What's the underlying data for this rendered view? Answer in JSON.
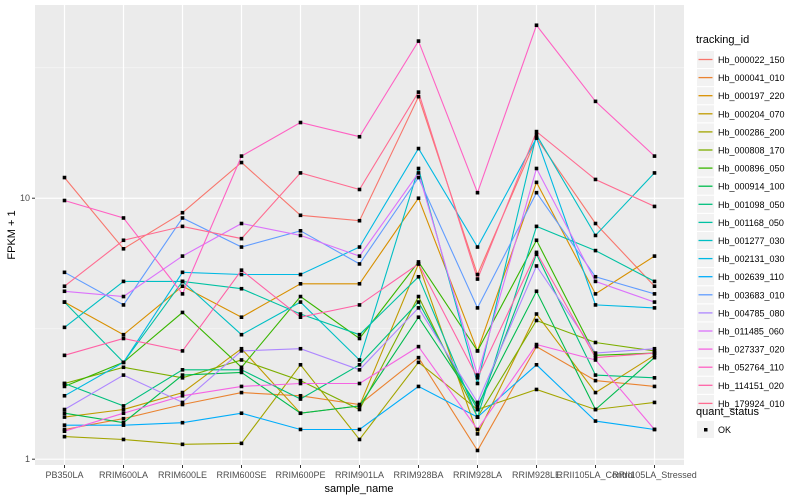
{
  "chart_data": {
    "type": "line",
    "title": "",
    "xlabel": "sample_name",
    "ylabel": "FPKM + 1",
    "yscale": "log10",
    "ylim": [
      0.95,
      55
    ],
    "y_ticks": [
      1,
      10
    ],
    "y_tick_labels": [
      "1",
      "10"
    ],
    "grid": true,
    "categories": [
      "PB350LA",
      "RRIM600LA",
      "RRIM600LE",
      "RRIM600SE",
      "RRIM600PE",
      "RRIM901LA",
      "RRIM928BA",
      "RRIM928LA",
      "RRIM928LE",
      "RRII105LA_Control",
      "RRII105LA_Stressed"
    ],
    "legend": {
      "position": "right",
      "color_title": "tracking_id",
      "shape_title": "quant_status",
      "shape_entries": [
        "OK"
      ]
    },
    "series": [
      {
        "name": "Hb_000022_150",
        "color": "#F8766D",
        "values": [
          12.0,
          6.4,
          8.8,
          13.7,
          8.6,
          8.2,
          24.5,
          5.1,
          17.0,
          8.0,
          4.6
        ]
      },
      {
        "name": "Hb_000041_010",
        "color": "#EA8331",
        "values": [
          1.3,
          1.43,
          1.62,
          1.8,
          1.75,
          1.62,
          2.45,
          1.08,
          2.7,
          2.0,
          1.9
        ]
      },
      {
        "name": "Hb_000197_220",
        "color": "#D89000",
        "values": [
          4.0,
          3.0,
          4.6,
          3.5,
          4.7,
          4.7,
          10.0,
          2.6,
          11.5,
          4.3,
          6.0
        ]
      },
      {
        "name": "Hb_000204_070",
        "color": "#C09B00",
        "values": [
          1.45,
          1.55,
          1.8,
          2.65,
          1.5,
          1.6,
          5.6,
          1.25,
          3.6,
          1.8,
          2.5
        ]
      },
      {
        "name": "Hb_000286_200",
        "color": "#A3A500",
        "values": [
          1.22,
          1.19,
          1.14,
          1.15,
          2.3,
          1.19,
          2.35,
          1.55,
          1.85,
          1.55,
          1.65
        ]
      },
      {
        "name": "Hb_000808_170",
        "color": "#7CAE00",
        "values": [
          1.95,
          2.25,
          2.05,
          2.4,
          2.0,
          1.55,
          4.2,
          1.45,
          3.4,
          2.8,
          2.6
        ]
      },
      {
        "name": "Hb_000896_050",
        "color": "#39B600",
        "values": [
          1.9,
          2.35,
          3.65,
          2.25,
          4.2,
          2.9,
          5.7,
          2.6,
          6.9,
          2.5,
          2.55
        ]
      },
      {
        "name": "Hb_000914_100",
        "color": "#00BB4E",
        "values": [
          1.5,
          1.38,
          2.1,
          2.15,
          1.5,
          1.6,
          3.5,
          1.6,
          4.4,
          1.55,
          2.45
        ]
      },
      {
        "name": "Hb_001098_050",
        "color": "#00BF7D",
        "values": [
          1.95,
          1.6,
          2.2,
          2.2,
          1.7,
          2.3,
          4.0,
          1.55,
          6.1,
          2.1,
          2.05
        ]
      },
      {
        "name": "Hb_001168_050",
        "color": "#00C1A3",
        "values": [
          4.0,
          2.35,
          4.8,
          4.5,
          3.6,
          3.0,
          5.0,
          1.45,
          7.8,
          6.3,
          4.8
        ]
      },
      {
        "name": "Hb_001277_030",
        "color": "#00BFC4",
        "values": [
          3.2,
          4.8,
          4.8,
          3.0,
          4.0,
          2.4,
          13.0,
          1.95,
          17.5,
          7.2,
          12.5
        ]
      },
      {
        "name": "Hb_002131_030",
        "color": "#00B9E3",
        "values": [
          1.75,
          2.35,
          5.2,
          5.1,
          5.1,
          6.5,
          15.5,
          6.5,
          17.0,
          3.9,
          3.8
        ]
      },
      {
        "name": "Hb_002639_110",
        "color": "#00ADFA",
        "values": [
          1.35,
          1.35,
          1.38,
          1.5,
          1.3,
          1.3,
          1.9,
          1.45,
          2.3,
          1.4,
          1.3
        ]
      },
      {
        "name": "Hb_003683_010",
        "color": "#619CFF",
        "values": [
          5.2,
          3.9,
          8.4,
          6.5,
          7.5,
          5.6,
          12.0,
          3.8,
          10.5,
          5.0,
          4.3
        ]
      },
      {
        "name": "Hb_004785_080",
        "color": "#AE87FF",
        "values": [
          1.55,
          2.1,
          1.65,
          2.6,
          2.65,
          2.2,
          3.8,
          1.65,
          5.5,
          2.55,
          2.65
        ]
      },
      {
        "name": "Hb_011485_060",
        "color": "#DB72FB",
        "values": [
          4.4,
          4.2,
          6.0,
          8.0,
          7.2,
          6.0,
          12.5,
          2.1,
          13.0,
          4.8,
          4.0
        ]
      },
      {
        "name": "Hb_027337_020",
        "color": "#F564E3",
        "values": [
          1.28,
          1.5,
          1.75,
          1.9,
          1.95,
          1.95,
          2.7,
          1.3,
          2.75,
          2.4,
          1.3
        ]
      },
      {
        "name": "Hb_052764_110",
        "color": "#FF61C3",
        "values": [
          9.8,
          8.4,
          4.3,
          14.5,
          19.5,
          17.2,
          40.0,
          10.5,
          46.0,
          23.5,
          14.5
        ]
      },
      {
        "name": "Hb_114151_020",
        "color": "#FF62A6",
        "values": [
          2.5,
          2.9,
          2.6,
          5.3,
          3.5,
          3.9,
          5.6,
          2.05,
          6.2,
          2.45,
          2.55
        ]
      },
      {
        "name": "Hb_179924_010",
        "color": "#FF6C91",
        "values": [
          4.6,
          6.9,
          7.8,
          7.0,
          12.5,
          10.8,
          25.5,
          4.9,
          18.0,
          11.8,
          9.3
        ]
      }
    ]
  }
}
